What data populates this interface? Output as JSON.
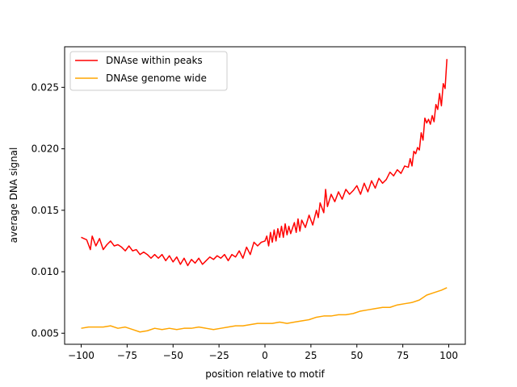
{
  "chart_data": {
    "type": "line",
    "xlabel": "position relative to motif",
    "ylabel": "average DNA signal",
    "xlim": [
      -109,
      109
    ],
    "ylim": [
      0.0041,
      0.0283
    ],
    "xticks": [
      -100,
      -75,
      -50,
      -25,
      0,
      25,
      50,
      75,
      100
    ],
    "xtick_labels": [
      "−100",
      "−75",
      "−50",
      "−25",
      "0",
      "25",
      "50",
      "75",
      "100"
    ],
    "yticks": [
      0.005,
      0.01,
      0.015,
      0.02,
      0.025
    ],
    "ytick_labels": [
      "0.005",
      "0.010",
      "0.015",
      "0.020",
      "0.025"
    ],
    "grid": false,
    "legend_position": "top-left",
    "series": [
      {
        "name": "DNAse within peaks",
        "color": "#ff0000",
        "points": [
          [
            -100,
            0.0128
          ],
          [
            -97,
            0.0126
          ],
          [
            -95,
            0.0118
          ],
          [
            -94,
            0.0129
          ],
          [
            -92,
            0.0121
          ],
          [
            -90,
            0.0127
          ],
          [
            -88,
            0.0118
          ],
          [
            -86,
            0.0122
          ],
          [
            -84,
            0.0125
          ],
          [
            -82,
            0.0121
          ],
          [
            -80,
            0.0122
          ],
          [
            -78,
            0.012
          ],
          [
            -76,
            0.0117
          ],
          [
            -74,
            0.0121
          ],
          [
            -72,
            0.0117
          ],
          [
            -70,
            0.0118
          ],
          [
            -68,
            0.0114
          ],
          [
            -66,
            0.0116
          ],
          [
            -64,
            0.0114
          ],
          [
            -62,
            0.0111
          ],
          [
            -60,
            0.0114
          ],
          [
            -58,
            0.0111
          ],
          [
            -56,
            0.0114
          ],
          [
            -54,
            0.0109
          ],
          [
            -52,
            0.0113
          ],
          [
            -50,
            0.0108
          ],
          [
            -48,
            0.0112
          ],
          [
            -46,
            0.0106
          ],
          [
            -44,
            0.0111
          ],
          [
            -42,
            0.0105
          ],
          [
            -40,
            0.011
          ],
          [
            -38,
            0.0107
          ],
          [
            -36,
            0.0111
          ],
          [
            -34,
            0.0106
          ],
          [
            -32,
            0.0109
          ],
          [
            -30,
            0.0112
          ],
          [
            -28,
            0.011
          ],
          [
            -26,
            0.0113
          ],
          [
            -24,
            0.0111
          ],
          [
            -22,
            0.0114
          ],
          [
            -20,
            0.0109
          ],
          [
            -18,
            0.0114
          ],
          [
            -16,
            0.0112
          ],
          [
            -14,
            0.0117
          ],
          [
            -12,
            0.0111
          ],
          [
            -10,
            0.012
          ],
          [
            -8,
            0.0114
          ],
          [
            -6,
            0.0124
          ],
          [
            -4,
            0.0121
          ],
          [
            -2,
            0.0124
          ],
          [
            0,
            0.0125
          ],
          [
            1,
            0.0129
          ],
          [
            2,
            0.0121
          ],
          [
            3,
            0.0132
          ],
          [
            4,
            0.0124
          ],
          [
            5,
            0.0134
          ],
          [
            6,
            0.0125
          ],
          [
            7,
            0.0135
          ],
          [
            8,
            0.0128
          ],
          [
            9,
            0.0137
          ],
          [
            10,
            0.0128
          ],
          [
            11,
            0.0139
          ],
          [
            12,
            0.013
          ],
          [
            13,
            0.0137
          ],
          [
            14,
            0.0131
          ],
          [
            16,
            0.014
          ],
          [
            17,
            0.0132
          ],
          [
            18,
            0.0143
          ],
          [
            19,
            0.0133
          ],
          [
            20,
            0.0142
          ],
          [
            22,
            0.0136
          ],
          [
            24,
            0.0146
          ],
          [
            26,
            0.0138
          ],
          [
            28,
            0.015
          ],
          [
            29,
            0.0144
          ],
          [
            30,
            0.0156
          ],
          [
            32,
            0.0148
          ],
          [
            33,
            0.0167
          ],
          [
            34,
            0.0153
          ],
          [
            36,
            0.0163
          ],
          [
            38,
            0.0157
          ],
          [
            40,
            0.0165
          ],
          [
            42,
            0.0159
          ],
          [
            44,
            0.0167
          ],
          [
            46,
            0.0163
          ],
          [
            48,
            0.0166
          ],
          [
            50,
            0.017
          ],
          [
            52,
            0.0163
          ],
          [
            54,
            0.0172
          ],
          [
            56,
            0.0165
          ],
          [
            58,
            0.0174
          ],
          [
            60,
            0.0168
          ],
          [
            62,
            0.0176
          ],
          [
            64,
            0.0172
          ],
          [
            66,
            0.0175
          ],
          [
            68,
            0.0181
          ],
          [
            70,
            0.0178
          ],
          [
            72,
            0.0183
          ],
          [
            74,
            0.018
          ],
          [
            76,
            0.0186
          ],
          [
            78,
            0.0185
          ],
          [
            79,
            0.0192
          ],
          [
            80,
            0.0186
          ],
          [
            81,
            0.0198
          ],
          [
            82,
            0.0196
          ],
          [
            83,
            0.0201
          ],
          [
            84,
            0.0199
          ],
          [
            85,
            0.0213
          ],
          [
            86,
            0.0207
          ],
          [
            87,
            0.0225
          ],
          [
            88,
            0.0221
          ],
          [
            89,
            0.0224
          ],
          [
            90,
            0.022
          ],
          [
            91,
            0.0227
          ],
          [
            92,
            0.0222
          ],
          [
            93,
            0.0236
          ],
          [
            94,
            0.0232
          ],
          [
            95,
            0.0245
          ],
          [
            96,
            0.0235
          ],
          [
            97,
            0.0253
          ],
          [
            98,
            0.0249
          ],
          [
            99,
            0.0273
          ]
        ]
      },
      {
        "name": "DNAse genome wide",
        "color": "#ffa500",
        "points": [
          [
            -100,
            0.0054
          ],
          [
            -96,
            0.0055
          ],
          [
            -92,
            0.0055
          ],
          [
            -88,
            0.0055
          ],
          [
            -84,
            0.0056
          ],
          [
            -80,
            0.0054
          ],
          [
            -76,
            0.0055
          ],
          [
            -72,
            0.0053
          ],
          [
            -68,
            0.0051
          ],
          [
            -64,
            0.0052
          ],
          [
            -60,
            0.0054
          ],
          [
            -56,
            0.0053
          ],
          [
            -52,
            0.0054
          ],
          [
            -48,
            0.0053
          ],
          [
            -44,
            0.0054
          ],
          [
            -40,
            0.0054
          ],
          [
            -36,
            0.0055
          ],
          [
            -32,
            0.0054
          ],
          [
            -28,
            0.0053
          ],
          [
            -24,
            0.0054
          ],
          [
            -20,
            0.0055
          ],
          [
            -16,
            0.0056
          ],
          [
            -12,
            0.0056
          ],
          [
            -8,
            0.0057
          ],
          [
            -4,
            0.0058
          ],
          [
            0,
            0.0058
          ],
          [
            4,
            0.0058
          ],
          [
            8,
            0.0059
          ],
          [
            12,
            0.0058
          ],
          [
            16,
            0.0059
          ],
          [
            20,
            0.006
          ],
          [
            24,
            0.0061
          ],
          [
            28,
            0.0063
          ],
          [
            32,
            0.0064
          ],
          [
            36,
            0.0064
          ],
          [
            40,
            0.0065
          ],
          [
            44,
            0.0065
          ],
          [
            48,
            0.0066
          ],
          [
            52,
            0.0068
          ],
          [
            56,
            0.0069
          ],
          [
            60,
            0.007
          ],
          [
            64,
            0.0071
          ],
          [
            68,
            0.0071
          ],
          [
            72,
            0.0073
          ],
          [
            76,
            0.0074
          ],
          [
            80,
            0.0075
          ],
          [
            84,
            0.0077
          ],
          [
            88,
            0.0081
          ],
          [
            92,
            0.0083
          ],
          [
            96,
            0.0085
          ],
          [
            99,
            0.0087
          ]
        ]
      }
    ]
  }
}
